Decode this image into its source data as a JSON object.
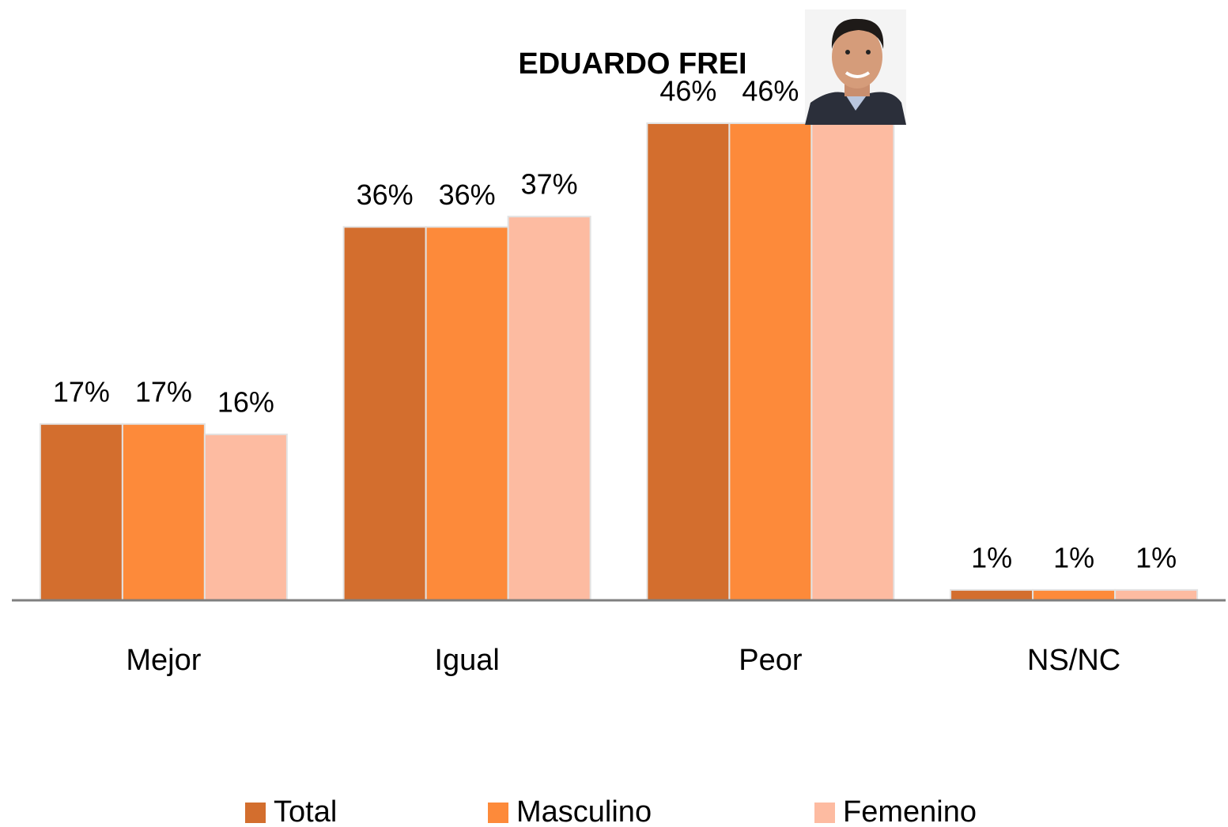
{
  "chart_data": {
    "type": "bar",
    "title": "EDUARDO FREI",
    "categories": [
      "Mejor",
      "Igual",
      "Peor",
      "NS/NC"
    ],
    "series": [
      {
        "name": "Total",
        "color": "#d36e2e",
        "values": [
          17,
          36,
          46,
          1
        ],
        "value_labels": [
          "17%",
          "36%",
          "46%",
          "1%"
        ]
      },
      {
        "name": "Masculino",
        "color": "#fd8a3a",
        "values": [
          17,
          36,
          46,
          1
        ],
        "value_labels": [
          "17%",
          "36%",
          "46%",
          "1%"
        ]
      },
      {
        "name": "Femenino",
        "color": "#fdbba1",
        "values": [
          16,
          37,
          46,
          1
        ],
        "value_labels": [
          "16%",
          "37%",
          null,
          "1%"
        ]
      }
    ],
    "ylim": [
      0,
      50
    ],
    "legend": "bottom"
  }
}
